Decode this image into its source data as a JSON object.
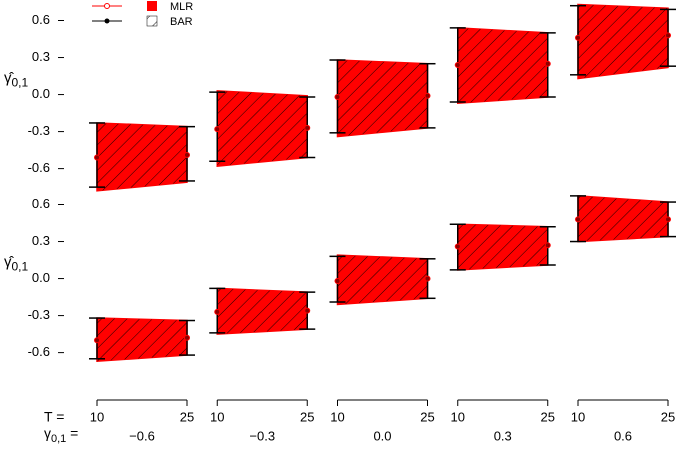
{
  "chart_data": [
    {
      "type": "interval",
      "ylabel": {
        "base": "γ̂",
        "sub": "0,1"
      },
      "ylim": [
        -0.83,
        0.75
      ],
      "yticks": [
        0.6,
        0.3,
        {
          "value": 0,
          "label": "0.0"
        },
        -0.3,
        -0.6
      ],
      "mlr": {
        "lower": [
          [
            -0.78,
            -0.71
          ],
          [
            -0.58,
            -0.51
          ],
          [
            -0.34,
            -0.27
          ],
          [
            -0.07,
            -0.02
          ],
          [
            0.13,
            0.22
          ]
        ],
        "upper": [
          [
            -0.23,
            -0.26
          ],
          [
            0.03,
            -0.01
          ],
          [
            0.28,
            0.25
          ],
          [
            0.54,
            0.5
          ],
          [
            0.73,
            0.7
          ]
        ]
      },
      "bar": {
        "lower": [
          [
            -0.75,
            -0.7
          ],
          [
            -0.54,
            -0.51
          ],
          [
            -0.31,
            -0.27
          ],
          [
            -0.06,
            -0.02
          ],
          [
            0.16,
            0.23
          ]
        ],
        "upper": [
          [
            -0.23,
            -0.26
          ],
          [
            0.02,
            -0.02
          ],
          [
            0.28,
            0.25
          ],
          [
            0.54,
            0.5
          ],
          [
            0.72,
            0.69
          ]
        ],
        "mean": [
          [
            -0.51,
            -0.49
          ],
          [
            -0.28,
            -0.27
          ],
          [
            -0.02,
            -0.01
          ],
          [
            0.24,
            0.25
          ],
          [
            0.46,
            0.48
          ]
        ]
      }
    },
    {
      "type": "interval",
      "ylabel": {
        "base": "γ̂",
        "sub": "0,1"
      },
      "ylim": [
        -0.83,
        0.75
      ],
      "yticks": [
        0.6,
        0.3,
        {
          "value": 0,
          "label": "0.0"
        },
        -0.3,
        -0.6
      ],
      "mlr": {
        "lower": [
          [
            -0.67,
            -0.62
          ],
          [
            -0.45,
            -0.41
          ],
          [
            -0.21,
            -0.16
          ],
          [
            0.07,
            0.11
          ],
          [
            0.3,
            0.34
          ]
        ],
        "upper": [
          [
            -0.32,
            -0.34
          ],
          [
            -0.08,
            -0.11
          ],
          [
            0.19,
            0.16
          ],
          [
            0.44,
            0.42
          ],
          [
            0.67,
            0.62
          ]
        ]
      },
      "bar": {
        "lower": [
          [
            -0.65,
            -0.62
          ],
          [
            -0.44,
            -0.41
          ],
          [
            -0.19,
            -0.16
          ],
          [
            0.07,
            0.11
          ],
          [
            0.3,
            0.34
          ]
        ],
        "upper": [
          [
            -0.32,
            -0.34
          ],
          [
            -0.08,
            -0.11
          ],
          [
            0.18,
            0.16
          ],
          [
            0.44,
            0.42
          ],
          [
            0.67,
            0.62
          ]
        ],
        "mean": [
          [
            -0.5,
            -0.48
          ],
          [
            -0.27,
            -0.26
          ],
          [
            -0.02,
            0
          ],
          [
            0.26,
            0.27
          ],
          [
            0.48,
            0.48
          ]
        ]
      }
    }
  ],
  "legend": {
    "entries": [
      {
        "name": "MLR",
        "color": "#ff0000"
      },
      {
        "name": "BAR",
        "color": "#000000"
      }
    ]
  },
  "x_axis": {
    "t_label": "T =",
    "group_label": {
      "base": "γ",
      "sub": "0,1",
      "suffix": " ="
    },
    "t_values": [
      10,
      25
    ],
    "categories": [
      "−0.6",
      "−0.3",
      "0.0",
      "0.3",
      "0.6"
    ]
  }
}
